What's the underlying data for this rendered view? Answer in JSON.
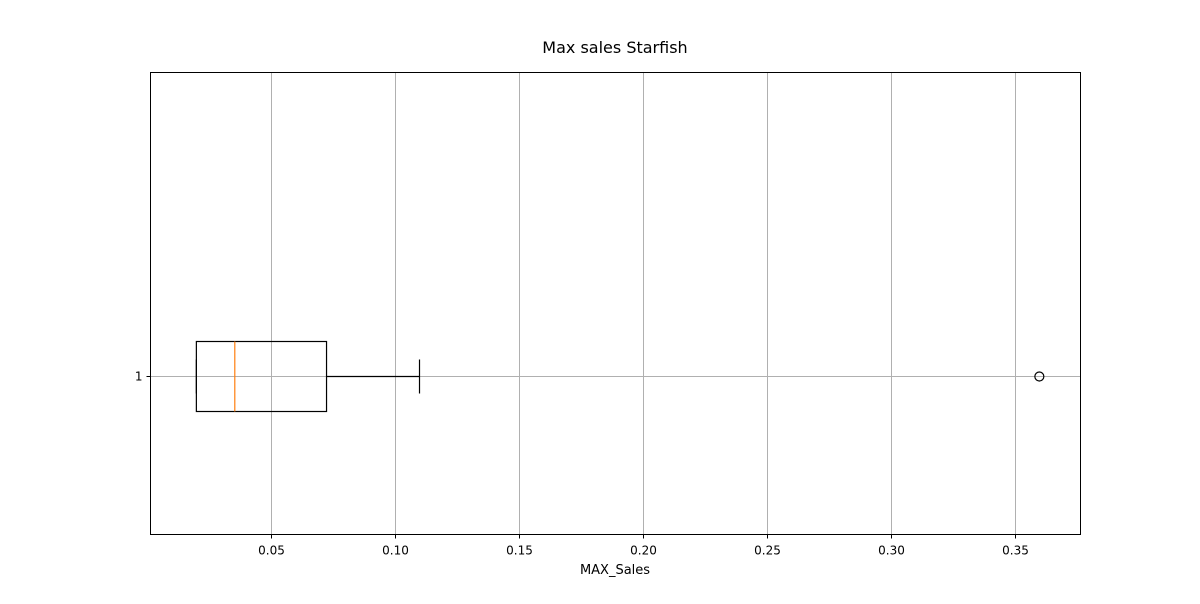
{
  "chart_data": {
    "type": "boxplot",
    "orientation": "horizontal",
    "title": "Max sales Starfish",
    "xlabel": "MAX_Sales",
    "ylabel": "",
    "xlim": [
      0.0015,
      0.3766
    ],
    "x_ticks": [
      0.05,
      0.1,
      0.15,
      0.2,
      0.25,
      0.3,
      0.35
    ],
    "x_tick_labels": [
      "0.05",
      "0.10",
      "0.15",
      "0.20",
      "0.25",
      "0.30",
      "0.35"
    ],
    "categories": [
      "1"
    ],
    "grid": true,
    "boxes": [
      {
        "label": "1",
        "whisker_low": 0.02,
        "q1": 0.02,
        "median": 0.0355,
        "q3": 0.0725,
        "whisker_high": 0.11,
        "outliers": [
          0.36
        ]
      }
    ],
    "colors": {
      "box": "#000000",
      "median": "#ff7f0e",
      "grid": "#b0b0b0",
      "outlier_edge": "#000000"
    }
  }
}
